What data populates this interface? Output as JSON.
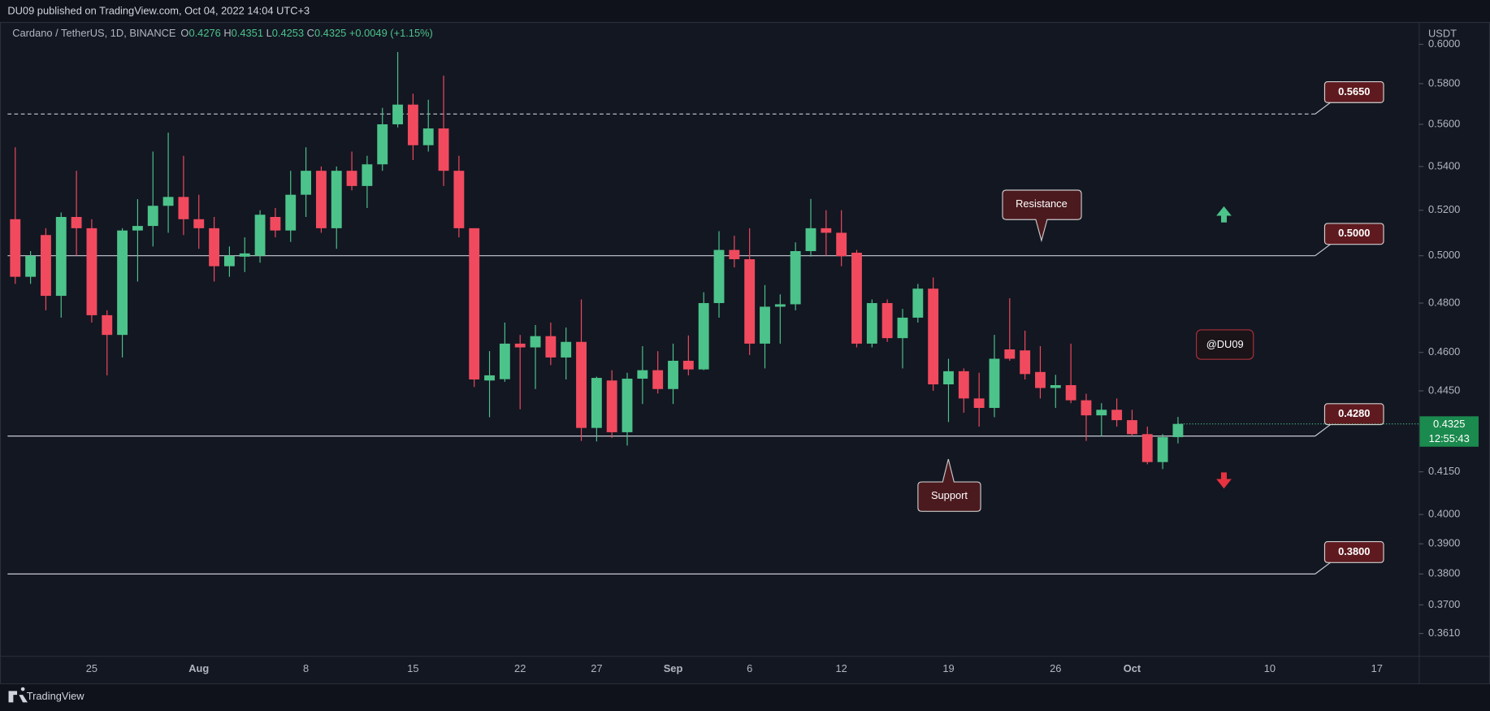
{
  "header": {
    "published": "DU09 published on TradingView.com, Oct 04, 2022 14:04 UTC+3",
    "brand": "TradingView"
  },
  "chart_data": {
    "type": "candlestick",
    "symbol": "Cardano / TetherUS, 1D, BINANCE",
    "ohlc_prefixes": [
      "O",
      "H",
      "L",
      "C"
    ],
    "change": "+0.0049 (+1.15%)",
    "y_axis_label": "USDT",
    "categories": [
      null,
      null,
      null,
      null,
      null,
      "25",
      null,
      null,
      null,
      null,
      null,
      null,
      "Aug",
      null,
      null,
      null,
      null,
      null,
      null,
      "8",
      null,
      null,
      null,
      null,
      null,
      null,
      "15",
      null,
      null,
      null,
      null,
      null,
      null,
      "22",
      null,
      null,
      null,
      null,
      "27",
      null,
      null,
      null,
      null,
      "Sep",
      null,
      null,
      null,
      null,
      "6",
      null,
      null,
      null,
      null,
      null,
      "12",
      null,
      null,
      null,
      null,
      null,
      null,
      "19",
      null,
      null,
      null,
      null,
      null,
      null,
      "26",
      null,
      null,
      null,
      null,
      "Oct",
      null,
      null,
      null,
      null,
      null,
      null,
      null,
      null,
      "10",
      null,
      null,
      null,
      null,
      null,
      null,
      "17",
      null,
      null,
      null
    ],
    "open": [
      0.516,
      0.491,
      0.509,
      0.483,
      0.517,
      0.512,
      0.475,
      0.467,
      0.511,
      0.513,
      0.522,
      0.526,
      0.516,
      0.512,
      0.4955,
      0.4996,
      0.5,
      0.517,
      0.511,
      0.527,
      0.538,
      0.512,
      0.538,
      0.531,
      0.541,
      0.56,
      0.5696,
      0.55,
      0.558,
      0.538,
      0.512,
      0.449,
      0.4495,
      0.4635,
      0.462,
      0.4665,
      0.458,
      0.4642,
      0.431,
      0.449,
      0.4294,
      0.4497,
      0.453,
      0.4457,
      0.4567,
      0.4533,
      0.48,
      0.5025,
      0.4985,
      0.4635,
      0.4785,
      0.4795,
      0.502,
      0.512,
      0.51,
      0.5013,
      0.4635,
      0.48,
      0.4657,
      0.474,
      0.486,
      0.4475,
      0.4526,
      0.4421,
      0.4385,
      0.4612,
      0.4608,
      0.4523,
      0.4461,
      0.4472,
      0.4414,
      0.4357,
      0.4378,
      0.4339,
      0.4287,
      0.4185,
      0.4276,
      null,
      null,
      null,
      null,
      null,
      null,
      null,
      null,
      null,
      null,
      null,
      null,
      null,
      null,
      null,
      null
    ],
    "high": [
      0.549,
      0.502,
      0.512,
      0.519,
      0.538,
      0.516,
      0.477,
      0.512,
      0.525,
      0.547,
      0.556,
      0.545,
      0.527,
      0.517,
      0.504,
      0.508,
      0.52,
      0.521,
      0.538,
      0.549,
      0.54,
      0.54,
      0.547,
      0.545,
      0.568,
      0.596,
      0.575,
      0.572,
      0.584,
      0.545,
      0.512,
      0.4605,
      0.472,
      0.467,
      0.471,
      0.472,
      0.47,
      0.4815,
      0.4505,
      0.453,
      0.452,
      0.4625,
      0.4605,
      0.4635,
      0.4668,
      0.4845,
      0.5107,
      0.5087,
      0.512,
      0.4875,
      0.4836,
      0.5058,
      0.5251,
      0.52,
      0.52,
      0.5025,
      0.4815,
      0.4815,
      0.4776,
      0.488,
      0.4907,
      0.4575,
      0.4537,
      0.452,
      0.467,
      0.482,
      0.4687,
      0.4625,
      0.4512,
      0.4635,
      0.4439,
      0.4403,
      0.4421,
      0.4378,
      0.4315,
      0.4287,
      0.4351,
      null,
      null,
      null,
      null,
      null,
      null,
      null,
      null,
      null,
      null,
      null,
      null,
      null,
      null,
      null,
      null
    ],
    "low": [
      0.488,
      0.488,
      0.477,
      0.474,
      0.5,
      0.472,
      0.451,
      0.458,
      0.489,
      0.504,
      0.51,
      0.509,
      0.503,
      0.489,
      0.491,
      0.493,
      0.497,
      0.508,
      0.506,
      0.517,
      0.51,
      0.503,
      0.529,
      0.521,
      0.538,
      0.5585,
      0.543,
      0.547,
      0.531,
      0.508,
      0.4465,
      0.435,
      0.4485,
      0.438,
      0.4457,
      0.455,
      0.4494,
      0.4262,
      0.426,
      0.4273,
      0.4245,
      0.44,
      0.444,
      0.44,
      0.451,
      0.453,
      0.474,
      0.495,
      0.459,
      0.4537,
      0.4635,
      0.477,
      0.4996,
      0.5,
      0.4955,
      0.462,
      0.462,
      0.4642,
      0.4537,
      0.472,
      0.445,
      0.4332,
      0.4367,
      0.4315,
      0.435,
      0.4567,
      0.4494,
      0.4421,
      0.4385,
      0.4403,
      0.4262,
      0.428,
      0.4315,
      0.428,
      0.4177,
      0.416,
      0.4253,
      null,
      null,
      null,
      null,
      null,
      null,
      null,
      null,
      null,
      null,
      null,
      null,
      null,
      null,
      null,
      null
    ],
    "close": [
      0.491,
      0.5,
      0.483,
      0.517,
      0.512,
      0.475,
      0.467,
      0.511,
      0.513,
      0.522,
      0.526,
      0.516,
      0.512,
      0.4955,
      0.5,
      0.501,
      0.518,
      0.511,
      0.527,
      0.538,
      0.512,
      0.538,
      0.531,
      0.541,
      0.56,
      0.5696,
      0.55,
      0.558,
      0.538,
      0.512,
      0.4494,
      0.451,
      0.4635,
      0.462,
      0.4665,
      0.458,
      0.4642,
      0.431,
      0.45,
      0.4294,
      0.4497,
      0.453,
      0.4457,
      0.4567,
      0.4533,
      0.48,
      0.5025,
      0.4985,
      0.4635,
      0.4785,
      0.4795,
      0.502,
      0.512,
      0.51,
      0.4998,
      0.4635,
      0.48,
      0.4657,
      0.474,
      0.486,
      0.4475,
      0.4526,
      0.4421,
      0.4385,
      0.4575,
      0.4575,
      0.4515,
      0.4461,
      0.4472,
      0.4414,
      0.4357,
      0.4378,
      0.4339,
      0.4287,
      0.4185,
      0.4276,
      0.4325,
      null,
      null,
      null,
      null,
      null,
      null,
      null,
      null,
      null,
      null,
      null,
      null,
      null,
      null,
      null,
      null
    ],
    "up_color": "#4cc38a",
    "down_color": "#f14a5e",
    "log_scale": true,
    "grid": false,
    "ylim": [
      0.3541,
      0.6112
    ],
    "yticks": [
      {
        "value": 0.6,
        "label": "0.6000"
      },
      {
        "value": 0.58,
        "label": "0.5800"
      },
      {
        "value": 0.56,
        "label": "0.5600"
      },
      {
        "value": 0.54,
        "label": "0.5400"
      },
      {
        "value": 0.52,
        "label": "0.5200"
      },
      {
        "value": 0.5,
        "label": "0.5000"
      },
      {
        "value": 0.48,
        "label": "0.4800"
      },
      {
        "value": 0.46,
        "label": "0.4600"
      },
      {
        "value": 0.445,
        "label": "0.4450"
      },
      {
        "value": 0.415,
        "label": "0.4150"
      },
      {
        "value": 0.4,
        "label": "0.4000"
      },
      {
        "value": 0.39,
        "label": "0.3900"
      },
      {
        "value": 0.38,
        "label": "0.3800"
      },
      {
        "value": 0.37,
        "label": "0.3700"
      },
      {
        "value": 0.361,
        "label": "0.3610"
      }
    ],
    "levels": [
      {
        "value": 0.565,
        "label": "0.5650",
        "dashed": true
      },
      {
        "value": 0.5,
        "label": "0.5000",
        "dashed": false
      },
      {
        "value": 0.428,
        "label": "0.4280",
        "dashed": false
      },
      {
        "value": 0.38,
        "label": "0.3800",
        "dashed": false
      }
    ],
    "countdown": "12:55:43",
    "annotations": {
      "resistance": "Resistance",
      "support": "Support",
      "author": "@DU09"
    }
  }
}
